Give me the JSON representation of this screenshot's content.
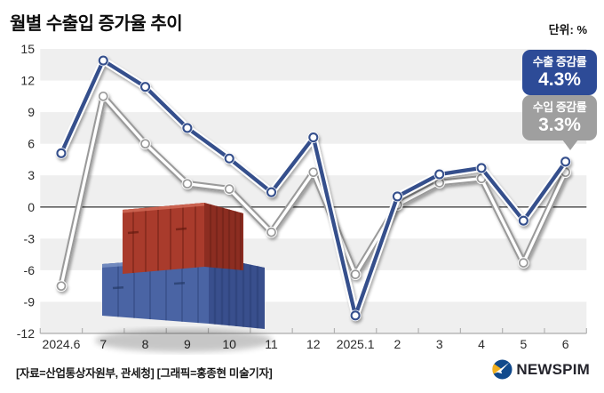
{
  "header": {
    "title": "월별 수출입 증가율 추이",
    "unit": "단위: %"
  },
  "chart_data": {
    "type": "line",
    "title": "월별 수출입 증가율 추이",
    "unit": "%",
    "categories": [
      "2024.6",
      "7",
      "8",
      "9",
      "10",
      "11",
      "12",
      "2025.1",
      "2",
      "3",
      "4",
      "5",
      "6"
    ],
    "series": [
      {
        "name": "수출 증감률",
        "line_color": "#35508c",
        "casing_color": "#ffffff",
        "values": [
          5.1,
          13.9,
          11.4,
          7.5,
          4.6,
          1.4,
          6.6,
          -10.3,
          1.0,
          3.1,
          3.7,
          -1.3,
          4.3
        ]
      },
      {
        "name": "수입 증감률",
        "line_color": "#ffffff",
        "casing_color": "#9a9a9a",
        "values": [
          -7.5,
          10.5,
          6.0,
          2.2,
          1.7,
          -2.4,
          3.3,
          -6.4,
          0.2,
          2.3,
          2.7,
          -5.3,
          3.3
        ]
      }
    ],
    "ylim": [
      -12,
      15
    ],
    "yticks": [
      15,
      12,
      9,
      6,
      3,
      0,
      -3,
      -6,
      -9,
      -12
    ],
    "band_color": "#efefef",
    "zero_line_color": "#5f5f5f",
    "axis_line_color": "#9a9a9a",
    "tick_label_color": "#2b2b2b",
    "grid": "alternating horizontal bands",
    "legend_position": "callout badges top-right"
  },
  "callouts": {
    "export": {
      "label": "수출 증감률",
      "value": "4.3%",
      "bg": "#2d4b97"
    },
    "import": {
      "label": "수입 증감률",
      "value": "3.3%",
      "bg": "#9f9f9f"
    }
  },
  "footer": {
    "source": "[자료=산업통상자원부, 관세청] [그래픽=홍종현 미술기자]",
    "brand": "NEWSPIM",
    "brand_colors": {
      "circle": "#10498c",
      "wedge": "#f2b01e",
      "arrow": "#ffffff"
    }
  }
}
